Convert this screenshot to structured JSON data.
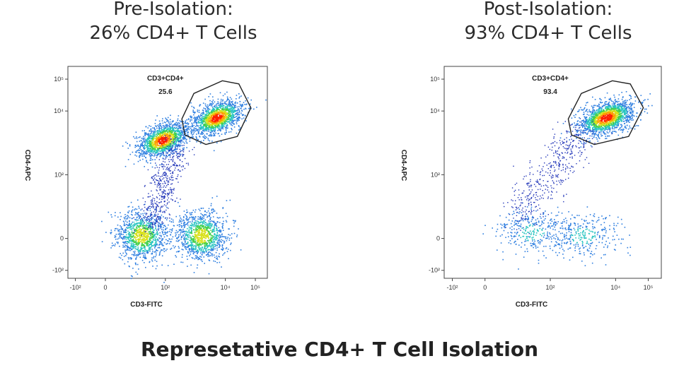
{
  "panels": [
    {
      "title_line1": "Pre-Isolation:",
      "title_line2": "26% CD4+ T Cells"
    },
    {
      "title_line1": "Post-Isolation:",
      "title_line2": "93% CD4+ T Cells"
    }
  ],
  "main_title": "Represetative CD4+ T Cell Isolation",
  "chart_data": [
    {
      "type": "scatter",
      "title": "Pre-Isolation: 26% CD4+ T Cells",
      "xlabel": "CD3-FITC",
      "ylabel": "CD4-APC",
      "x_ticks": [
        "-10²",
        "0",
        "10²",
        "10⁴",
        "10⁵"
      ],
      "y_ticks": [
        "-10²",
        "0",
        "10²",
        "10⁴",
        "10⁵"
      ],
      "gate": {
        "name": "CD3+CD4+",
        "value": "25.6"
      },
      "populations": [
        {
          "name": "CD3+CD4+",
          "x": 3.7,
          "y": 3.8,
          "density": "high"
        },
        {
          "name": "CD3-CD4+",
          "x": 1.9,
          "y": 3.1,
          "density": "high"
        },
        {
          "name": "CD3-CD4-",
          "x": 1.2,
          "y": 0.1,
          "density": "medium"
        },
        {
          "name": "CD3+CD4-",
          "x": 3.2,
          "y": 0.1,
          "density": "medium"
        }
      ]
    },
    {
      "type": "scatter",
      "title": "Post-Isolation: 93% CD4+ T Cells",
      "xlabel": "CD3-FITC",
      "ylabel": "CD4-APC",
      "x_ticks": [
        "-10²",
        "0",
        "10²",
        "10⁴",
        "10⁵"
      ],
      "y_ticks": [
        "-10²",
        "0",
        "10²",
        "10⁴",
        "10⁵"
      ],
      "gate": {
        "name": "CD3+CD4+",
        "value": "93.4"
      },
      "populations": [
        {
          "name": "CD3+CD4+",
          "x": 3.7,
          "y": 3.8,
          "density": "high"
        },
        {
          "name": "CD3-CD4-",
          "x": 1.4,
          "y": 0.2,
          "density": "low"
        },
        {
          "name": "CD3+CD4-",
          "x": 3.0,
          "y": 0.1,
          "density": "low"
        }
      ]
    }
  ],
  "colors": {
    "low": "#1f3fbf",
    "mid": "#2ecc71",
    "high": "#ff2a00",
    "mid2": "#e8d300"
  }
}
